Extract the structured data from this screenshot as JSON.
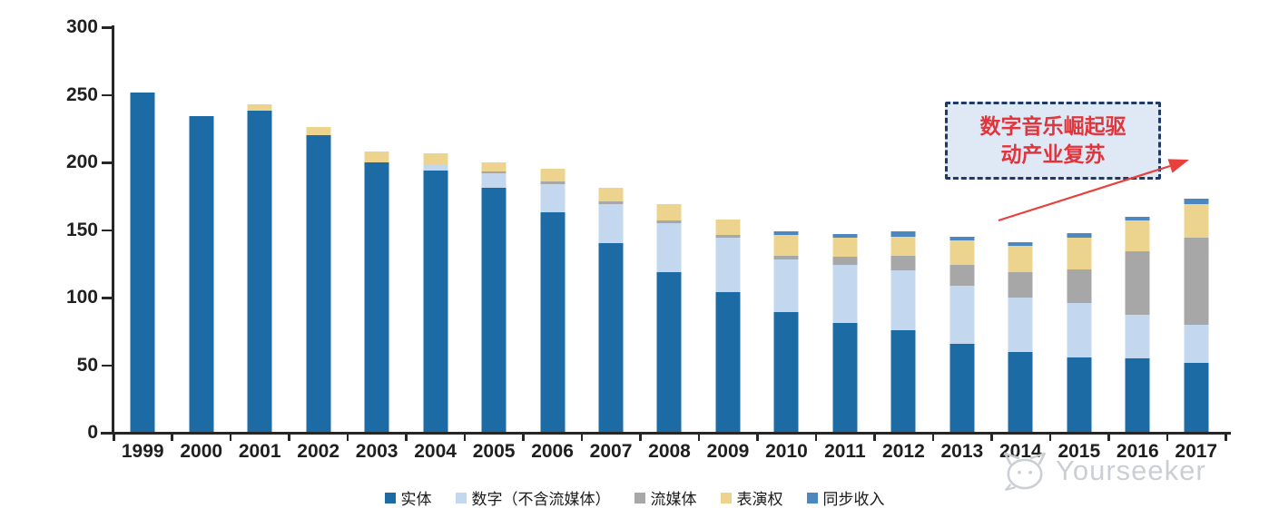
{
  "annotation": {
    "line1": "数字音乐崛起驱",
    "line2": "动产业复苏"
  },
  "watermark": {
    "brand": "Yourseeker"
  },
  "colors": {
    "physical": "#1c6ba5",
    "digital_excl_streaming": "#c3d8ee",
    "streaming": "#a7a7a7",
    "performance_rights": "#ecd48f",
    "sync": "#4d87c0",
    "axis": "#262626",
    "callout_border": "#1f3a63",
    "callout_fill": "#dfe8f5",
    "callout_text": "#e0353c",
    "arrow": "#e8403c"
  },
  "chart_data": {
    "type": "bar",
    "stacked": true,
    "title": "",
    "xlabel": "",
    "ylabel": "",
    "ylim": [
      0,
      300
    ],
    "yticks": [
      0,
      50,
      100,
      150,
      200,
      250,
      300
    ],
    "grid": false,
    "legend_position": "bottom",
    "annotation_text": "数字音乐崛起驱动产业复苏",
    "categories": [
      "1999",
      "2000",
      "2001",
      "2002",
      "2003",
      "2004",
      "2005",
      "2006",
      "2007",
      "2008",
      "2009",
      "2010",
      "2011",
      "2012",
      "2013",
      "2014",
      "2015",
      "2016",
      "2017"
    ],
    "series": [
      {
        "key": "physical",
        "name": "实体",
        "color": "#1c6ba5",
        "values": [
          252,
          234,
          238,
          220,
          200,
          194,
          181,
          163,
          140,
          119,
          104,
          89,
          81,
          76,
          66,
          60,
          56,
          55,
          52
        ]
      },
      {
        "key": "digital-excl-streaming",
        "name": "数字（不含流媒体）",
        "color": "#c3d8ee",
        "values": [
          0,
          0,
          0,
          0,
          0,
          4,
          11,
          21,
          29,
          36,
          40,
          39,
          43,
          44,
          43,
          40,
          40,
          32,
          28
        ]
      },
      {
        "key": "streaming",
        "name": "流媒体",
        "color": "#a7a7a7",
        "values": [
          0,
          0,
          0,
          0,
          0,
          0,
          1,
          2,
          2,
          2,
          2,
          3,
          6,
          11,
          15,
          19,
          25,
          47,
          64
        ]
      },
      {
        "key": "performance-rights",
        "name": "表演权",
        "color": "#ecd48f",
        "values": [
          0,
          0,
          5,
          6,
          8,
          9,
          7,
          9,
          10,
          12,
          12,
          15,
          14,
          14,
          18,
          19,
          23,
          23,
          25
        ]
      },
      {
        "key": "sync",
        "name": "同步收入",
        "color": "#4d87c0",
        "values": [
          0,
          0,
          0,
          0,
          0,
          0,
          0,
          0,
          0,
          0,
          0,
          3,
          3,
          4,
          3,
          3,
          4,
          3,
          4
        ]
      }
    ],
    "totals": [
      252,
      234,
      243,
      226,
      208,
      207,
      200,
      195,
      181,
      169,
      158,
      149,
      147,
      149,
      145,
      141,
      148,
      160,
      173
    ]
  }
}
